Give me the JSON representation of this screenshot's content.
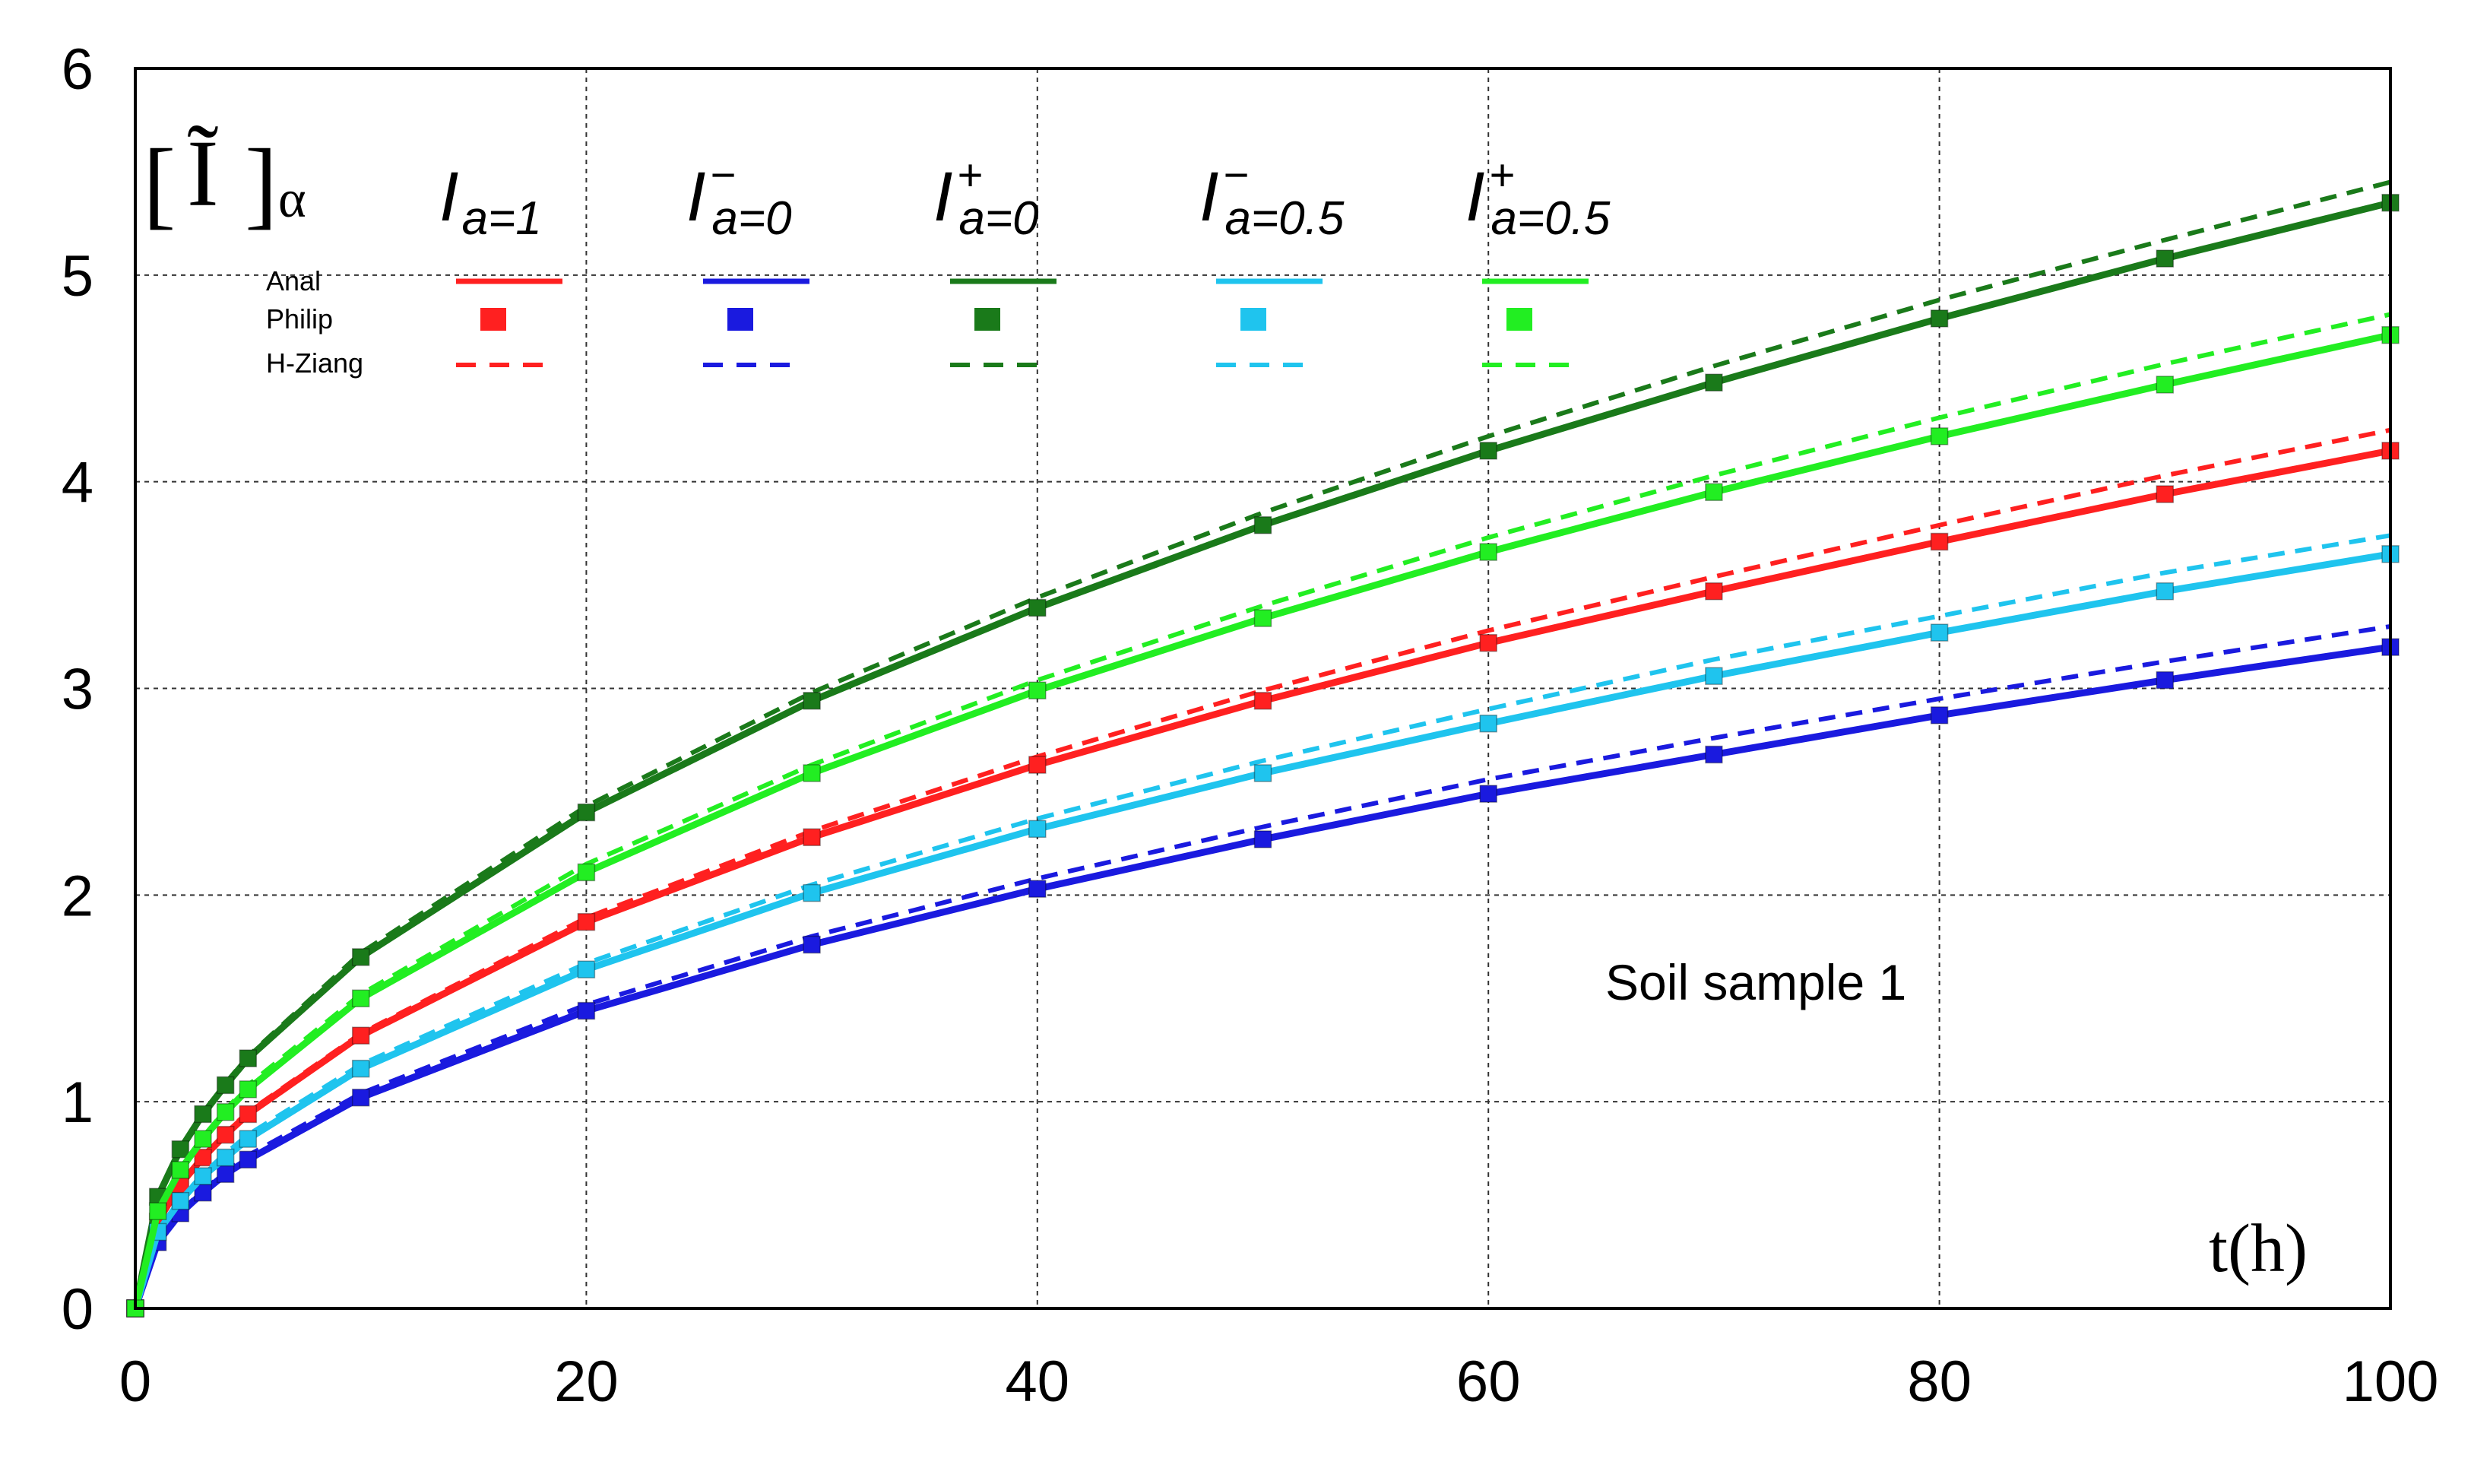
{
  "chart_data": {
    "type": "line",
    "title": "",
    "annotation": "Soil sample 1",
    "xlabel": "t(h)",
    "ylabel": "[Ĩ]α",
    "ylabel_main": "[",
    "ylabel_glyph": "Ĩ",
    "ylabel_close": "]",
    "ylabel_sub": "α",
    "xlim": [
      0,
      100
    ],
    "ylim": [
      0,
      6
    ],
    "xticks": [
      "0",
      "20",
      "40",
      "60",
      "80",
      "100"
    ],
    "yticks": [
      "0",
      "1",
      "2",
      "3",
      "4",
      "5",
      "6"
    ],
    "grid": true,
    "legend_rows": [
      "Anal",
      "Philip",
      "H-Ziang"
    ],
    "x": [
      0,
      1,
      2,
      3,
      4,
      5,
      10,
      20,
      30,
      40,
      50,
      60,
      70,
      80,
      90,
      100
    ],
    "series": [
      {
        "name": "I a=1",
        "label_main": "I",
        "label_sup": "",
        "label_sub": "a=1",
        "color": "#ff2020",
        "values": [
          0,
          0.42,
          0.6,
          0.73,
          0.84,
          0.94,
          1.32,
          1.87,
          2.28,
          2.63,
          2.94,
          3.22,
          3.47,
          3.71,
          3.94,
          4.15
        ],
        "hz_values": [
          0,
          0.42,
          0.6,
          0.74,
          0.85,
          0.95,
          1.33,
          1.89,
          2.31,
          2.67,
          2.99,
          3.28,
          3.54,
          3.79,
          4.03,
          4.25
        ]
      },
      {
        "name": "I− a=0",
        "label_main": "I",
        "label_sup": "−",
        "label_sub": "a=0",
        "color": "#1a1adf",
        "values": [
          0,
          0.32,
          0.46,
          0.56,
          0.65,
          0.72,
          1.02,
          1.44,
          1.76,
          2.03,
          2.27,
          2.49,
          2.68,
          2.87,
          3.04,
          3.2
        ],
        "hz_values": [
          0,
          0.33,
          0.47,
          0.57,
          0.66,
          0.74,
          1.04,
          1.47,
          1.8,
          2.08,
          2.33,
          2.56,
          2.76,
          2.95,
          3.13,
          3.3
        ]
      },
      {
        "name": "I+ a=0",
        "label_main": "I",
        "label_sup": "+",
        "label_sub": "a=0",
        "color": "#1a7a1a",
        "values": [
          0,
          0.54,
          0.77,
          0.94,
          1.08,
          1.21,
          1.7,
          2.4,
          2.94,
          3.39,
          3.79,
          4.15,
          4.48,
          4.79,
          5.08,
          5.35
        ],
        "hz_values": [
          0,
          0.54,
          0.77,
          0.94,
          1.09,
          1.22,
          1.72,
          2.43,
          2.98,
          3.44,
          3.85,
          4.22,
          4.56,
          4.88,
          5.17,
          5.45
        ]
      },
      {
        "name": "I− a=0.5",
        "label_main": "I",
        "label_sup": "−",
        "label_sub": "a=0.5",
        "color": "#1fc4ee",
        "values": [
          0,
          0.37,
          0.52,
          0.64,
          0.73,
          0.82,
          1.16,
          1.64,
          2.01,
          2.32,
          2.59,
          2.83,
          3.06,
          3.27,
          3.47,
          3.65
        ],
        "hz_values": [
          0,
          0.37,
          0.53,
          0.65,
          0.75,
          0.84,
          1.18,
          1.67,
          2.05,
          2.37,
          2.65,
          2.9,
          3.14,
          3.35,
          3.56,
          3.74
        ]
      },
      {
        "name": "I+ a=0.5",
        "label_main": "I",
        "label_sup": "+",
        "label_sub": "a=0.5",
        "color": "#22ee22",
        "values": [
          0,
          0.47,
          0.67,
          0.82,
          0.95,
          1.06,
          1.5,
          2.11,
          2.59,
          2.99,
          3.34,
          3.66,
          3.95,
          4.22,
          4.47,
          4.71
        ],
        "hz_values": [
          0,
          0.48,
          0.68,
          0.83,
          0.96,
          1.08,
          1.52,
          2.15,
          2.63,
          3.04,
          3.4,
          3.73,
          4.03,
          4.31,
          4.57,
          4.81
        ]
      }
    ]
  }
}
